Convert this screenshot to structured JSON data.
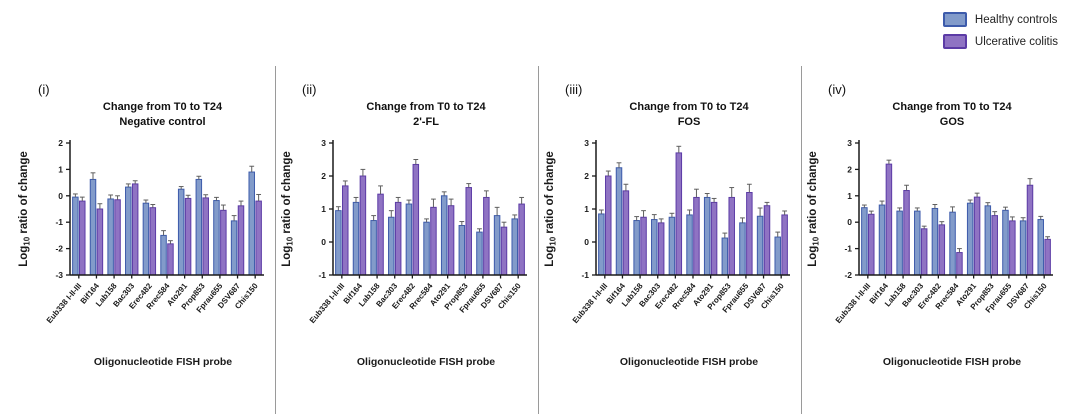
{
  "figure": {
    "legend": [
      {
        "label": "Healthy controls",
        "fill": "#829BCA",
        "stroke": "#3D5BAB"
      },
      {
        "label": "Ulcerative colitis",
        "fill": "#8F73C3",
        "stroke": "#5C3BA6"
      }
    ],
    "error_color": "#5f5f5f",
    "axis_color": "#1a1a1a"
  },
  "chart_data": [
    {
      "type": "bar",
      "panel_label": "(i)",
      "title_line1": "Change from T0 to T24",
      "title_line2": "Negative control",
      "ylabel": {
        "prefix": "Log",
        "sub": "10",
        "suffix": " ratio of change"
      },
      "xlabel": "Oligonucleotide FISH probe",
      "ylim": [
        -3,
        2
      ],
      "bars_from_axis_min": true,
      "grid": false,
      "categories": [
        "Eub338 I-II-III",
        "Bif164",
        "Lab158",
        "Bac303",
        "Erec482",
        "Rrec584",
        "Ato291",
        "Prop853",
        "Fprau655",
        "DSV687",
        "Chis150"
      ],
      "series": [
        {
          "name": "Healthy controls",
          "values": [
            -0.05,
            0.62,
            -0.12,
            0.33,
            -0.28,
            -1.5,
            0.25,
            0.62,
            -0.18,
            -0.95,
            0.9
          ],
          "errors": [
            0.12,
            0.25,
            0.15,
            0.12,
            0.12,
            0.18,
            0.1,
            0.12,
            0.12,
            0.2,
            0.22
          ]
        },
        {
          "name": "Ulcerative colitis",
          "values": [
            -0.2,
            -0.5,
            -0.15,
            0.45,
            -0.45,
            -1.82,
            -0.1,
            -0.08,
            -0.55,
            -0.38,
            -0.2
          ],
          "errors": [
            0.15,
            0.2,
            0.15,
            0.12,
            0.12,
            0.12,
            0.12,
            0.12,
            0.2,
            0.18,
            0.25
          ]
        }
      ]
    },
    {
      "type": "bar",
      "panel_label": "(ii)",
      "title_line1": "Change from T0 to T24",
      "title_line2": "2'-FL",
      "ylabel": {
        "prefix": "Log",
        "sub": "10",
        "suffix": " ratio of change"
      },
      "xlabel": "Oligonucleotide FISH probe",
      "ylim": [
        -1,
        3
      ],
      "bars_from_axis_min": true,
      "grid": false,
      "categories": [
        "Eub338 I-II-III",
        "Bif164",
        "Lab158",
        "Bac303",
        "Erec482",
        "Rrec584",
        "Ato291",
        "Prop853",
        "Fprau655",
        "DSV687",
        "Chis150"
      ],
      "series": [
        {
          "name": "Healthy controls",
          "values": [
            0.95,
            1.2,
            0.65,
            0.75,
            1.15,
            0.6,
            1.4,
            0.5,
            0.3,
            0.8,
            0.7
          ],
          "errors": [
            0.12,
            0.15,
            0.15,
            0.2,
            0.12,
            0.1,
            0.12,
            0.12,
            0.1,
            0.25,
            0.12
          ]
        },
        {
          "name": "Ulcerative colitis",
          "values": [
            1.7,
            2.0,
            1.45,
            1.2,
            2.35,
            1.05,
            1.1,
            1.65,
            1.35,
            0.45,
            1.15
          ],
          "errors": [
            0.15,
            0.2,
            0.25,
            0.15,
            0.15,
            0.25,
            0.2,
            0.12,
            0.2,
            0.15,
            0.2
          ]
        }
      ]
    },
    {
      "type": "bar",
      "panel_label": "(iii)",
      "title_line1": "Change from T0 to T24",
      "title_line2": "FOS",
      "ylabel": {
        "prefix": "Log",
        "sub": "10",
        "suffix": " ratio of change"
      },
      "xlabel": "Oligonucleotide FISH probe",
      "ylim": [
        -1,
        3
      ],
      "bars_from_axis_min": true,
      "grid": false,
      "categories": [
        "Eub338 I-II-III",
        "Bif164",
        "Lab158",
        "Bac303",
        "Erec482",
        "Rrec584",
        "Ato291",
        "Prop853",
        "Fprau655",
        "DSV687",
        "Chis150"
      ],
      "series": [
        {
          "name": "Healthy controls",
          "values": [
            0.85,
            2.25,
            0.65,
            0.68,
            0.75,
            0.82,
            1.35,
            0.12,
            0.58,
            0.78,
            0.15
          ],
          "errors": [
            0.12,
            0.15,
            0.12,
            0.15,
            0.12,
            0.15,
            0.12,
            0.15,
            0.15,
            0.25,
            0.15
          ]
        },
        {
          "name": "Ulcerative colitis",
          "values": [
            2.0,
            1.55,
            0.75,
            0.58,
            2.7,
            1.35,
            1.2,
            1.35,
            1.5,
            1.1,
            0.82
          ],
          "errors": [
            0.15,
            0.2,
            0.2,
            0.12,
            0.2,
            0.25,
            0.12,
            0.3,
            0.25,
            0.1,
            0.12
          ]
        }
      ]
    },
    {
      "type": "bar",
      "panel_label": "(iv)",
      "title_line1": "Change from T0 to T24",
      "title_line2": "GOS",
      "ylabel": {
        "prefix": "Log",
        "sub": "10",
        "suffix": " ratio of change"
      },
      "xlabel": "Oligonucleotide FISH probe",
      "ylim": [
        -2,
        3
      ],
      "bars_from_axis_min": true,
      "grid": false,
      "categories": [
        "Eub338 I-II-III",
        "Bif164",
        "Lab158",
        "Bac303",
        "Erec482",
        "Rrec584",
        "Ato291",
        "Prop853",
        "Fprau655",
        "DSV687",
        "Chis150"
      ],
      "series": [
        {
          "name": "Healthy controls",
          "values": [
            0.55,
            0.65,
            0.42,
            0.42,
            0.52,
            0.38,
            0.72,
            0.62,
            0.45,
            0.05,
            0.1
          ],
          "errors": [
            0.1,
            0.15,
            0.12,
            0.12,
            0.15,
            0.2,
            0.12,
            0.12,
            0.12,
            0.12,
            0.12
          ]
        },
        {
          "name": "Ulcerative colitis",
          "values": [
            0.3,
            2.2,
            1.2,
            -0.25,
            -0.1,
            -1.15,
            0.95,
            0.25,
            0.05,
            1.4,
            -0.65
          ],
          "errors": [
            0.12,
            0.15,
            0.2,
            0.1,
            0.12,
            0.15,
            0.15,
            0.15,
            0.15,
            0.25,
            0.1
          ]
        }
      ]
    }
  ]
}
